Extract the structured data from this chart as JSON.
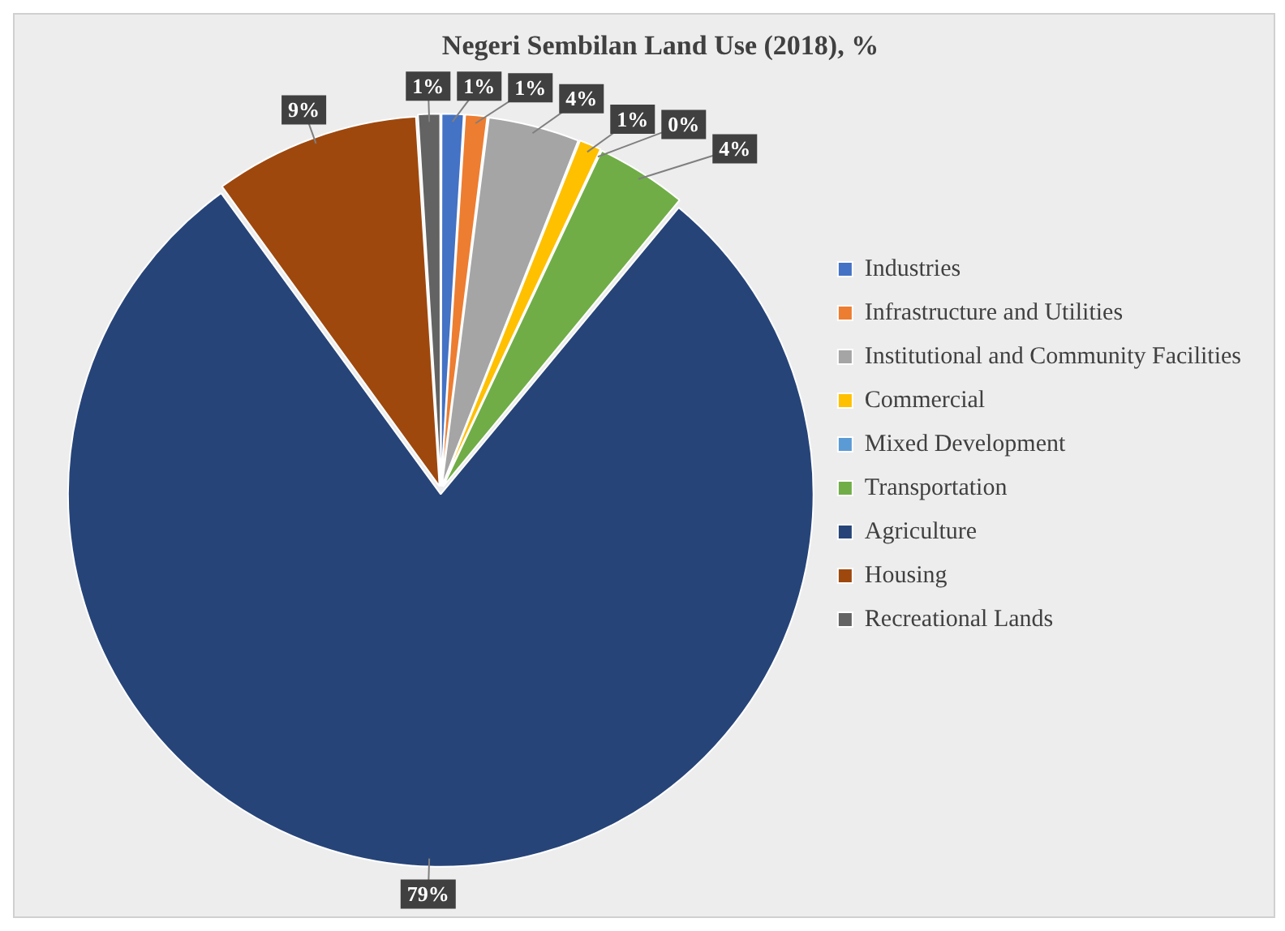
{
  "chart_data": {
    "type": "pie",
    "title": "Negeri Sembilan Land Use (2018), %",
    "categories": [
      "Industries",
      "Infrastructure and Utilities",
      "Institutional and Community Facilities",
      "Commercial",
      "Mixed Development",
      "Transportation",
      "Agriculture",
      "Housing",
      "Recreational Lands"
    ],
    "values": [
      1,
      1,
      4,
      1,
      0,
      4,
      79,
      9,
      1
    ],
    "value_labels": [
      "1%",
      "1%",
      "4%",
      "1%",
      "0%",
      "4%",
      "79%",
      "9%",
      "1%"
    ],
    "colors": [
      "#4472c4",
      "#ed7d31",
      "#a5a5a5",
      "#ffc000",
      "#5b9bd5",
      "#70ad47",
      "#264478",
      "#9e480e",
      "#636363"
    ],
    "legend": "right"
  }
}
